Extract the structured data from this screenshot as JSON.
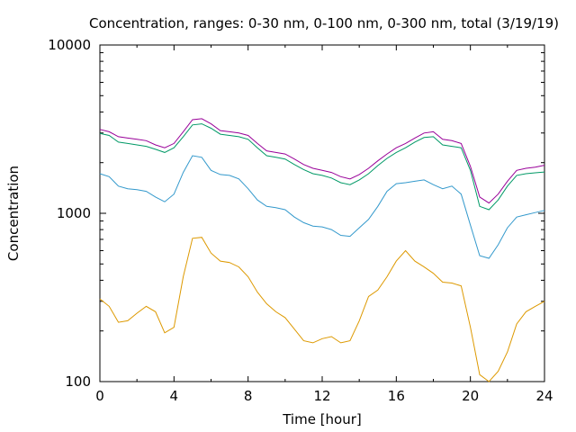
{
  "chart_data": {
    "type": "line",
    "title": "Concentration, ranges: 0-30 nm, 0-100 nm, 0-300 nm, total (3/19/19)",
    "xlabel": "Time [hour]",
    "ylabel": "Concentration",
    "xlim": [
      0,
      24
    ],
    "ylim": [
      100,
      10000
    ],
    "yscale": "log",
    "grid": false,
    "legend": "none",
    "xticks": [
      "0",
      "4",
      "8",
      "12",
      "16",
      "20",
      "24"
    ],
    "yticks": [
      "100",
      "1000",
      "10000"
    ],
    "series": [
      {
        "color": "#990099",
        "x": [
          0,
          0.5,
          1,
          1.5,
          2,
          2.5,
          3,
          3.5,
          4,
          4.5,
          5,
          5.5,
          6,
          6.5,
          7,
          7.5,
          8,
          8.5,
          9,
          9.5,
          10,
          10.5,
          11,
          11.5,
          12,
          12.5,
          13,
          13.5,
          14,
          14.5,
          15,
          15.5,
          16,
          16.5,
          17,
          17.5,
          18,
          18.5,
          19,
          19.5,
          20,
          20.5,
          21,
          21.5,
          22,
          22.5,
          23,
          23.5,
          24
        ],
        "values": [
          3150,
          3050,
          2850,
          2800,
          2750,
          2700,
          2550,
          2450,
          2600,
          3050,
          3600,
          3650,
          3400,
          3100,
          3050,
          3000,
          2900,
          2600,
          2350,
          2300,
          2250,
          2100,
          1950,
          1850,
          1800,
          1750,
          1650,
          1600,
          1700,
          1850,
          2050,
          2250,
          2450,
          2600,
          2800,
          3000,
          3050,
          2750,
          2700,
          2600,
          1900,
          1250,
          1150,
          1300,
          1550,
          1800,
          1850,
          1880,
          1930
        ]
      },
      {
        "color": "#009966",
        "x": [
          0,
          0.5,
          1,
          1.5,
          2,
          2.5,
          3,
          3.5,
          4,
          4.5,
          5,
          5.5,
          6,
          6.5,
          7,
          7.5,
          8,
          8.5,
          9,
          9.5,
          10,
          10.5,
          11,
          11.5,
          12,
          12.5,
          13,
          13.5,
          14,
          14.5,
          15,
          15.5,
          16,
          16.5,
          17,
          17.5,
          18,
          18.5,
          19,
          19.5,
          20,
          20.5,
          21,
          21.5,
          22,
          22.5,
          23,
          23.5,
          24
        ],
        "values": [
          2980,
          2900,
          2650,
          2600,
          2550,
          2500,
          2400,
          2300,
          2450,
          2850,
          3350,
          3400,
          3200,
          2950,
          2900,
          2850,
          2750,
          2450,
          2200,
          2150,
          2100,
          1950,
          1820,
          1720,
          1680,
          1620,
          1520,
          1480,
          1580,
          1720,
          1920,
          2120,
          2300,
          2450,
          2650,
          2820,
          2850,
          2550,
          2500,
          2450,
          1800,
          1100,
          1050,
          1200,
          1450,
          1680,
          1720,
          1740,
          1760
        ]
      },
      {
        "color": "#3399cc",
        "x": [
          0,
          0.5,
          1,
          1.5,
          2,
          2.5,
          3,
          3.5,
          4,
          4.5,
          5,
          5.5,
          6,
          6.5,
          7,
          7.5,
          8,
          8.5,
          9,
          9.5,
          10,
          10.5,
          11,
          11.5,
          12,
          12.5,
          13,
          13.5,
          14,
          14.5,
          15,
          15.5,
          16,
          16.5,
          17,
          17.5,
          18,
          18.5,
          19,
          19.5,
          20,
          20.5,
          21,
          21.5,
          22,
          22.5,
          23,
          23.5,
          24
        ],
        "values": [
          1720,
          1650,
          1450,
          1400,
          1380,
          1350,
          1250,
          1170,
          1300,
          1750,
          2200,
          2150,
          1800,
          1700,
          1680,
          1600,
          1400,
          1200,
          1100,
          1080,
          1050,
          950,
          880,
          840,
          830,
          800,
          740,
          730,
          820,
          920,
          1100,
          1350,
          1500,
          1520,
          1550,
          1580,
          1480,
          1400,
          1450,
          1300,
          850,
          560,
          540,
          650,
          820,
          950,
          980,
          1010,
          1040
        ]
      },
      {
        "color": "#dd9900",
        "x": [
          0,
          0.5,
          1,
          1.5,
          2,
          2.5,
          3,
          3.5,
          4,
          4.5,
          5,
          5.5,
          6,
          6.5,
          7,
          7.5,
          8,
          8.5,
          9,
          9.5,
          10,
          10.5,
          11,
          11.5,
          12,
          12.5,
          13,
          13.5,
          14,
          14.5,
          15,
          15.5,
          16,
          16.5,
          17,
          17.5,
          18,
          18.5,
          19,
          19.5,
          20,
          20.5,
          21,
          21.5,
          22,
          22.5,
          23,
          23.5,
          24
        ],
        "values": [
          310,
          280,
          225,
          230,
          255,
          280,
          260,
          195,
          210,
          420,
          710,
          720,
          580,
          520,
          510,
          480,
          420,
          340,
          290,
          260,
          240,
          205,
          175,
          170,
          180,
          185,
          170,
          175,
          230,
          320,
          350,
          420,
          520,
          600,
          520,
          480,
          440,
          390,
          385,
          370,
          210,
          110,
          100,
          115,
          150,
          220,
          260,
          280,
          300
        ]
      }
    ]
  }
}
